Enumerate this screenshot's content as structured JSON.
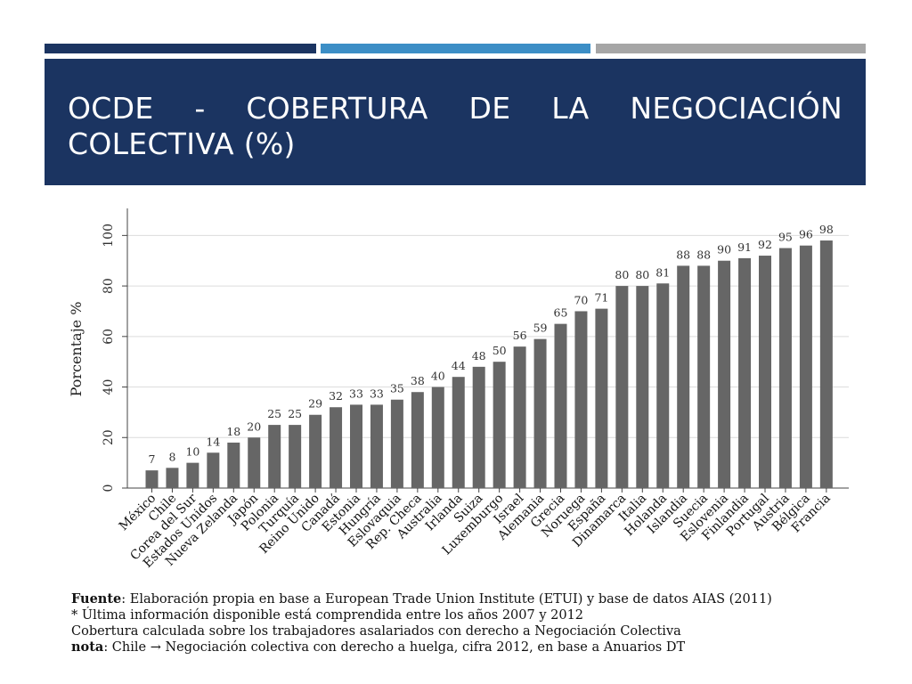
{
  "slide": {
    "title": "OCDE - COBERTURA DE LA NEGOCIACIÓN COLECTIVA (%)",
    "colors": {
      "header_bg": "#1b3461",
      "accent_blue": "#3c8ec6",
      "accent_gray": "#a6a6a6",
      "bar": "#666666"
    }
  },
  "chart_data": {
    "type": "bar",
    "title": "",
    "xlabel": "",
    "ylabel": "Porcentaje %",
    "ylim": [
      0,
      110
    ],
    "yticks": [
      0,
      20,
      40,
      60,
      80,
      100
    ],
    "grid": true,
    "categories": [
      "México",
      "Chile",
      "Corea del Sur",
      "Estados Unidos",
      "Nueva Zelanda",
      "Japón",
      "Polonia",
      "Turquía",
      "Reino Unido",
      "Canadá",
      "Estonia",
      "Hungría",
      "Eslovaquia",
      "Rep. Checa",
      "Australia",
      "Irlanda",
      "Suiza",
      "Luxemburgo",
      "Israel",
      "Alemania",
      "Grecia",
      "Noruega",
      "España",
      "Dinamarca",
      "Italia",
      "Holanda",
      "Islandia",
      "Suecia",
      "Eslovenia",
      "Finlandia",
      "Portugal",
      "Austria",
      "Bélgica",
      "Francia"
    ],
    "values": [
      7,
      8,
      10,
      14,
      18,
      20,
      25,
      25,
      29,
      32,
      33,
      33,
      35,
      38,
      40,
      44,
      48,
      50,
      56,
      59,
      65,
      70,
      71,
      80,
      80,
      81,
      88,
      88,
      90,
      91,
      92,
      95,
      96,
      98
    ]
  },
  "notes": {
    "source_label": "Fuente",
    "source_text": ": Elaboración propia en base a European Trade Union Institute (ETUI) y base de datos AIAS (2011)",
    "line2": "* Última información disponible está comprendida entre los años 2007 y 2012",
    "line3": "Cobertura calculada sobre los trabajadores asalariados con derecho a Negociación Colectiva",
    "nota_label": "nota",
    "nota_text": ": Chile → Negociación colectiva con derecho a huelga, cifra 2012, en base a Anuarios DT"
  }
}
